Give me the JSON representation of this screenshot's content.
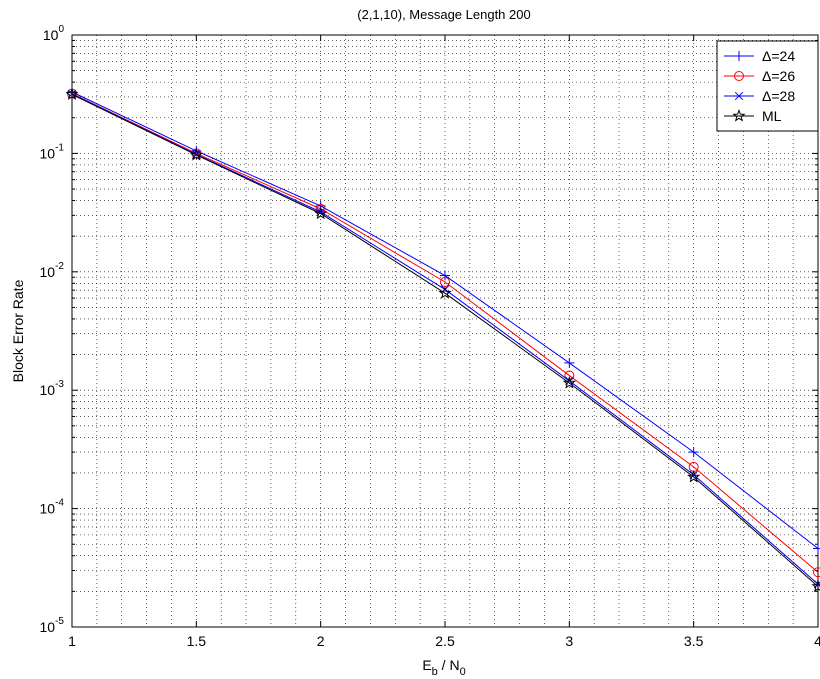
{
  "chart_data": {
    "type": "line",
    "title": "(2,1,10), Message Length 200",
    "xlabel": {
      "main": "E",
      "sub": "b",
      "sep": " / N",
      "sub2": "0"
    },
    "ylabel": "Block Error Rate",
    "x": [
      1,
      1.5,
      2,
      2.5,
      3,
      3.5,
      4
    ],
    "xlim": [
      1,
      4
    ],
    "ylim": [
      1e-05,
      1
    ],
    "yscale": "log",
    "grid": true,
    "legend_position": "top-right",
    "x_tick_labels": [
      "1",
      "1.5",
      "2",
      "2.5",
      "3",
      "3.5",
      "4"
    ],
    "y_tick_labels": [
      {
        "base": "10",
        "exp": "-5",
        "value": 1e-05
      },
      {
        "base": "10",
        "exp": "-4",
        "value": 0.0001
      },
      {
        "base": "10",
        "exp": "-3",
        "value": 0.001
      },
      {
        "base": "10",
        "exp": "-2",
        "value": 0.01
      },
      {
        "base": "10",
        "exp": "-1",
        "value": 0.1
      },
      {
        "base": "10",
        "exp": "0",
        "value": 1
      }
    ],
    "series": [
      {
        "name": "Δ=24",
        "color": "#0000ff",
        "marker": "plus",
        "values": [
          0.33,
          0.105,
          0.036,
          0.0093,
          0.0017,
          0.0003,
          4.6e-05
        ]
      },
      {
        "name": "Δ=26",
        "color": "#ff0000",
        "marker": "circle",
        "values": [
          0.32,
          0.1,
          0.034,
          0.0082,
          0.00133,
          0.000225,
          2.9e-05
        ]
      },
      {
        "name": "Δ=28",
        "color": "#0000ff",
        "marker": "x",
        "values": [
          0.318,
          0.098,
          0.032,
          0.0071,
          0.0012,
          0.000193,
          2.3e-05
        ]
      },
      {
        "name": "ML",
        "color": "#000000",
        "marker": "star",
        "values": [
          0.315,
          0.097,
          0.031,
          0.0066,
          0.00115,
          0.000185,
          2.2e-05
        ]
      }
    ]
  }
}
